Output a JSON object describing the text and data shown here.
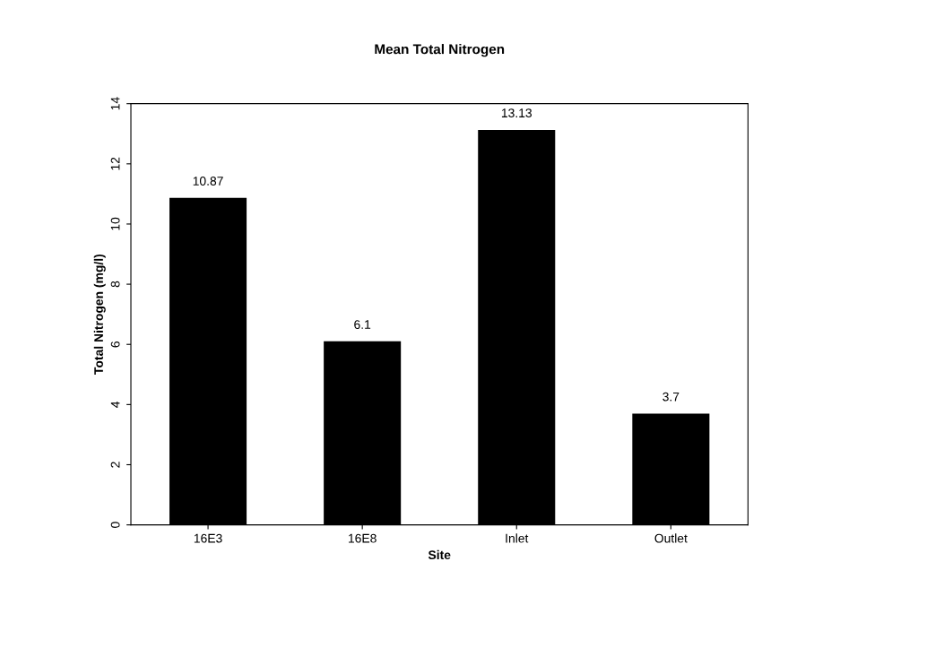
{
  "chart_data": {
    "type": "bar",
    "title": "Mean Total Nitrogen",
    "xlabel": "Site",
    "ylabel": "Total Nitrogen (mg/l)",
    "categories": [
      "16E3",
      "16E8",
      "Inlet",
      "Outlet"
    ],
    "values": [
      10.87,
      6.1,
      13.13,
      3.7
    ],
    "color": "#000000",
    "data_labels": true,
    "ylim": [
      0,
      14
    ],
    "yticks": [
      0,
      2,
      4,
      6,
      8,
      10,
      12,
      14
    ],
    "grid": false,
    "legend": false
  }
}
